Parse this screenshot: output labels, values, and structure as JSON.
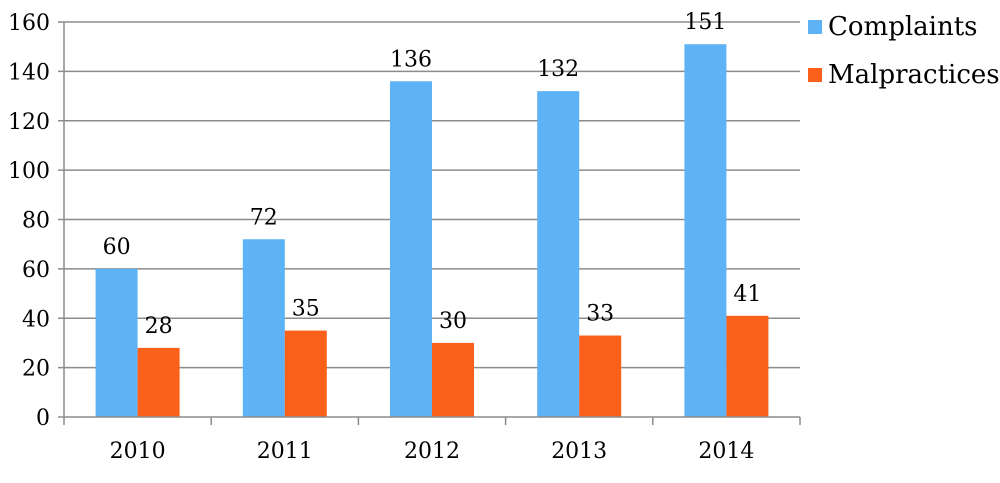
{
  "chart_data": {
    "type": "bar",
    "categories": [
      "2010",
      "2011",
      "2012",
      "2013",
      "2014"
    ],
    "series": [
      {
        "name": "Complaints",
        "values": [
          60,
          72,
          136,
          132,
          151
        ],
        "color": "#5db3f5"
      },
      {
        "name": "Malpractices",
        "values": [
          28,
          35,
          30,
          33,
          41
        ],
        "color": "#fa6019"
      }
    ],
    "ylim": [
      0,
      160
    ],
    "yticks": [
      0,
      20,
      40,
      60,
      80,
      100,
      120,
      140,
      160
    ],
    "grid": true,
    "legend": "top-right",
    "data_labels": true
  }
}
